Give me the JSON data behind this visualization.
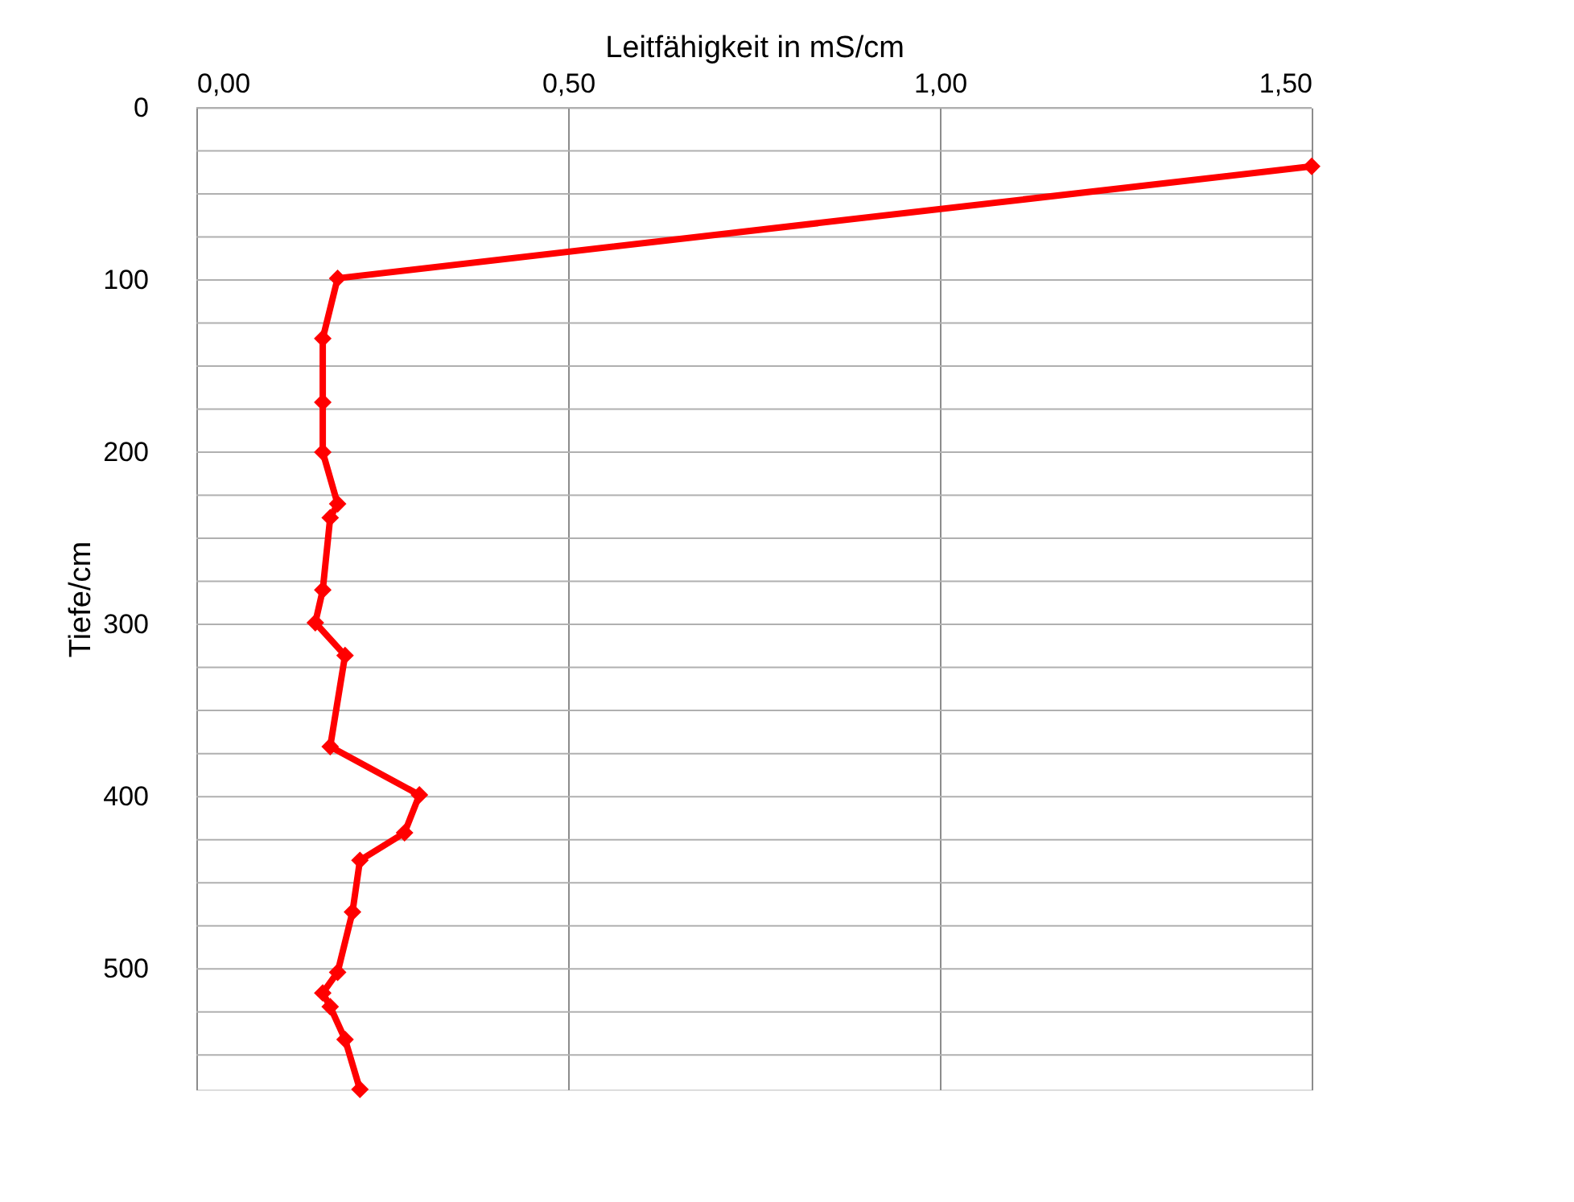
{
  "chart_data": {
    "type": "line",
    "xlabel": "Leitfähigkeit in mS/cm",
    "ylabel": "Tiefe/cm",
    "xlim": [
      0,
      1.5
    ],
    "xticks": [
      {
        "value": 0,
        "label": "0,00"
      },
      {
        "value": 0.5,
        "label": "0,50"
      },
      {
        "value": 1.0,
        "label": "1,00"
      },
      {
        "value": 1.5,
        "label": "1,50"
      }
    ],
    "ylim": [
      570,
      0
    ],
    "yticks": [
      0,
      {
        "value": 25,
        "label": null
      },
      {
        "value": 50,
        "label": null
      },
      {
        "value": 75,
        "label": null
      },
      100,
      {
        "value": 125,
        "label": null
      },
      {
        "value": 150,
        "label": null
      },
      {
        "value": 175,
        "label": null
      },
      200,
      {
        "value": 225,
        "label": null
      },
      {
        "value": 250,
        "label": null
      },
      {
        "value": 275,
        "label": null
      },
      300,
      {
        "value": 325,
        "label": null
      },
      {
        "value": 350,
        "label": null
      },
      {
        "value": 375,
        "label": null
      },
      400,
      {
        "value": 425,
        "label": null
      },
      {
        "value": 450,
        "label": null
      },
      {
        "value": 475,
        "label": null
      },
      500,
      {
        "value": 525,
        "label": null
      },
      {
        "value": 550,
        "label": null
      }
    ],
    "grid": true,
    "marker": "diamond",
    "line_style": "solid",
    "series": [
      {
        "color": "#ff0000",
        "x": [
          1.5,
          0.19,
          0.17,
          0.17,
          0.17,
          0.19,
          0.18,
          0.17,
          0.16,
          0.2,
          0.18,
          0.3,
          0.28,
          0.22,
          0.21,
          0.19,
          0.17,
          0.18,
          0.2,
          0.22
        ],
        "values": [
          34,
          99,
          134,
          171,
          200,
          230,
          238,
          280,
          299,
          318,
          371,
          399,
          421,
          437,
          467,
          502,
          514,
          522,
          541,
          570
        ]
      }
    ]
  }
}
